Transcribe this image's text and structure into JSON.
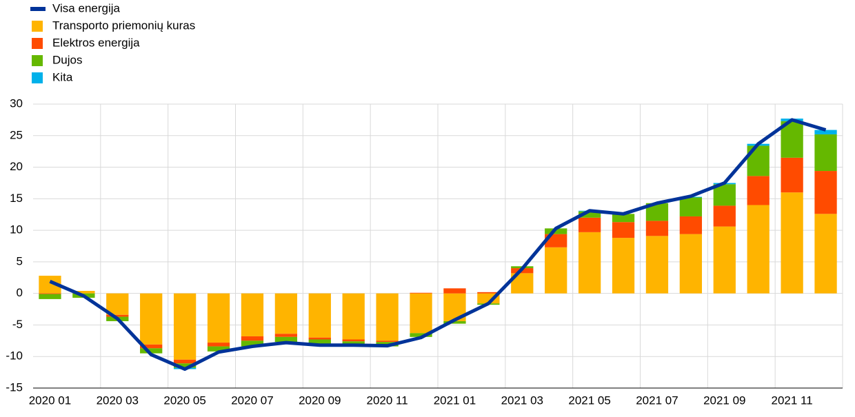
{
  "chart_data": {
    "type": "bar",
    "stacked": true,
    "categories": [
      "2020 01",
      null,
      "2020 03",
      null,
      "2020 05",
      null,
      "2020 07",
      null,
      "2020 09",
      null,
      "2020 11",
      null,
      "2021 01",
      null,
      "2021 03",
      null,
      "2021 05",
      null,
      "2021 07",
      null,
      "2021 09",
      null,
      "2021 11",
      null
    ],
    "series": [
      {
        "name": "Visa energija",
        "type": "line",
        "color": "#003399",
        "values": [
          1.9,
          -0.4,
          -4.0,
          -9.7,
          -12.0,
          -9.3,
          -8.4,
          -7.8,
          -8.2,
          -8.2,
          -8.3,
          -7.0,
          -4.2,
          -1.6,
          3.9,
          10.3,
          13.1,
          12.6,
          14.3,
          15.4,
          17.5,
          23.7,
          27.5,
          25.9
        ]
      },
      {
        "name": "Transporto priemonių kuras",
        "color": "#ffb400",
        "values": [
          2.8,
          0.4,
          -3.4,
          -8.1,
          -10.5,
          -7.8,
          -6.8,
          -6.4,
          -7.0,
          -7.3,
          -7.5,
          -6.3,
          -4.4,
          -1.6,
          3.2,
          7.3,
          9.7,
          8.8,
          9.1,
          9.4,
          10.6,
          14.0,
          16.0,
          12.6
        ]
      },
      {
        "name": "Elektros energija",
        "color": "#ff4b00",
        "values": [
          -0.1,
          0.0,
          -0.3,
          -0.6,
          -0.6,
          -0.6,
          -0.7,
          -0.5,
          -0.3,
          -0.3,
          -0.2,
          0.1,
          0.8,
          0.2,
          0.8,
          2.1,
          2.3,
          2.5,
          2.4,
          2.8,
          3.3,
          4.6,
          5.5,
          6.8
        ]
      },
      {
        "name": "Dujos",
        "color": "#65b800",
        "values": [
          -0.8,
          -0.7,
          -0.7,
          -0.8,
          -0.7,
          -0.8,
          -0.9,
          -0.8,
          -0.8,
          -0.6,
          -0.7,
          -0.6,
          -0.4,
          -0.2,
          0.3,
          0.9,
          1.0,
          1.3,
          2.8,
          3.0,
          3.4,
          4.8,
          5.8,
          5.8
        ]
      },
      {
        "name": "Kita",
        "color": "#00b1ea",
        "values": [
          0.0,
          0.0,
          0.0,
          0.0,
          -0.2,
          0.0,
          0.0,
          0.0,
          0.0,
          0.0,
          0.0,
          0.0,
          0.0,
          0.0,
          0.0,
          0.0,
          0.1,
          0.0,
          0.0,
          0.1,
          0.2,
          0.3,
          0.4,
          0.7
        ]
      }
    ],
    "ylim": [
      -15,
      30
    ],
    "yticks": [
      -15,
      -10,
      -5,
      0,
      5,
      10,
      15,
      20,
      25,
      30
    ],
    "grid": true,
    "legend": "top-left"
  }
}
